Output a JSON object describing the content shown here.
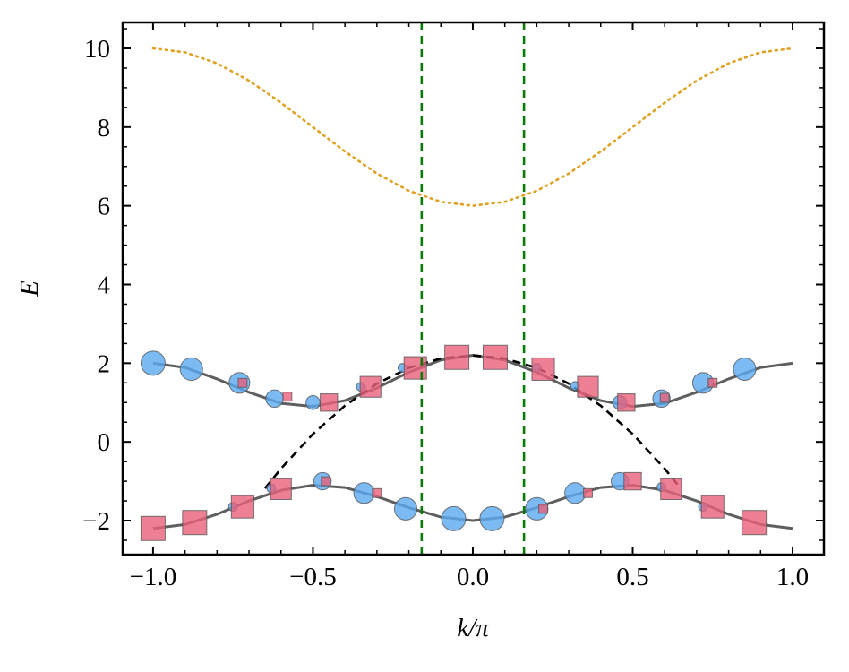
{
  "chart_data": {
    "type": "line",
    "xlabel": "k/π",
    "ylabel": "E",
    "xlim": [
      -1.095,
      1.098
    ],
    "ylim": [
      -2.865,
      10.66
    ],
    "xticks": [
      {
        "value": -1.0,
        "label": "−1.0"
      },
      {
        "value": -0.5,
        "label": "−0.5"
      },
      {
        "value": 0,
        "label": "0.0"
      },
      {
        "value": 0.5,
        "label": "0.5"
      },
      {
        "value": 1.0,
        "label": "1.0"
      }
    ],
    "yticks": [
      {
        "value": -2,
        "label": "−2"
      },
      0,
      2,
      4,
      6,
      8,
      10
    ],
    "xminorticks": [
      -0.9,
      -0.8,
      -0.7,
      -0.6,
      -0.4,
      -0.3,
      -0.2,
      -0.1,
      0.1,
      0.2,
      0.3,
      0.4,
      0.6,
      0.7,
      0.8,
      0.9
    ],
    "yminorticks": [
      -2.5,
      -1.5,
      -1,
      -0.5,
      0.5,
      1,
      1.5,
      2.5,
      3,
      3.5,
      4.5,
      5,
      5.5,
      6.5,
      7,
      7.5,
      8.5,
      9,
      9.5,
      10.5
    ],
    "series": [
      {
        "style": "solid",
        "color": "#555555",
        "x": [
          -1.0,
          -0.9,
          -0.8,
          -0.7,
          -0.6,
          -0.5,
          -0.4,
          -0.3,
          -0.2,
          -0.1,
          0,
          0.1,
          0.2,
          0.3,
          0.4,
          0.5,
          0.6,
          0.7,
          0.8,
          0.9,
          1.0
        ],
        "values": [
          2.0,
          1.89,
          1.6,
          1.26,
          0.98,
          0.9,
          1.05,
          1.37,
          1.77,
          2.08,
          2.2,
          2.08,
          1.77,
          1.37,
          1.05,
          0.9,
          0.98,
          1.26,
          1.6,
          1.89,
          2.0
        ]
      },
      {
        "style": "solid",
        "color": "#555555",
        "x": [
          -1.0,
          -0.9,
          -0.8,
          -0.7,
          -0.6,
          -0.5,
          -0.4,
          -0.3,
          -0.2,
          -0.1,
          0,
          0.1,
          0.2,
          0.3,
          0.4,
          0.5,
          0.6,
          0.7,
          0.8,
          0.9,
          1.0
        ],
        "values": [
          -2.2,
          -2.1,
          -1.84,
          -1.5,
          -1.23,
          -1.1,
          -1.16,
          -1.39,
          -1.67,
          -1.91,
          -2.0,
          -1.91,
          -1.67,
          -1.39,
          -1.16,
          -1.1,
          -1.23,
          -1.5,
          -1.84,
          -2.1,
          -2.2
        ]
      },
      {
        "style": "dotted",
        "color": "#e0a020",
        "x": [
          -1.0,
          -0.9,
          -0.8,
          -0.7,
          -0.6,
          -0.5,
          -0.4,
          -0.3,
          -0.2,
          -0.1,
          0,
          0.1,
          0.2,
          0.3,
          0.4,
          0.5,
          0.6,
          0.7,
          0.8,
          0.9,
          1.0
        ],
        "values": [
          10,
          9.9,
          9.62,
          9.18,
          8.62,
          8,
          7.38,
          6.82,
          6.38,
          6.1,
          6,
          6.1,
          6.38,
          6.82,
          7.38,
          8,
          8.62,
          9.18,
          9.62,
          9.9,
          10
        ]
      },
      {
        "style": "dashed",
        "color": "#000000",
        "x": [
          -0.65,
          -0.6,
          -0.5,
          -0.4,
          -0.3,
          -0.2,
          -0.1,
          0,
          0.1,
          0.2,
          0.3,
          0.4,
          0.5,
          0.6,
          0.65
        ],
        "values": [
          -1.18,
          -0.68,
          0.2,
          0.92,
          1.48,
          1.88,
          2.12,
          2.2,
          2.12,
          1.88,
          1.48,
          0.92,
          0.2,
          -0.68,
          -1.18
        ]
      }
    ],
    "vlines": {
      "color": "#0a7a0a",
      "values": [
        -0.16,
        0.16
      ]
    },
    "scatter_series": [
      {
        "marker": "circle",
        "color": "#5aa9f0",
        "x": [
          -1.0,
          -0.88,
          -0.73,
          -0.62,
          -0.5,
          -0.35,
          -0.22,
          0.2,
          0.32,
          0.46,
          0.59,
          0.72,
          0.85,
          -0.75,
          -0.63,
          -0.47,
          -0.34,
          -0.21,
          -0.06,
          0.06,
          0.2,
          0.32,
          0.46,
          0.59,
          0.72
        ],
        "values": [
          2.0,
          1.85,
          1.5,
          1.1,
          1.0,
          1.4,
          1.88,
          1.88,
          1.42,
          1.0,
          1.1,
          1.5,
          1.85,
          -1.65,
          -1.18,
          -1.0,
          -1.3,
          -1.7,
          -1.95,
          -1.95,
          -1.7,
          -1.3,
          -1.0,
          -1.15,
          -1.65
        ],
        "sizes": [
          10,
          9,
          8,
          6,
          4,
          1,
          1,
          1,
          1,
          4,
          6,
          8,
          9,
          1,
          1,
          6,
          8,
          9,
          10,
          10,
          9,
          8,
          6,
          1,
          1
        ]
      },
      {
        "marker": "square",
        "color": "#e8607a",
        "x": [
          -0.72,
          -0.58,
          -0.45,
          -0.32,
          -0.18,
          -0.05,
          0.07,
          0.22,
          0.36,
          0.48,
          0.6,
          0.75,
          -1.0,
          -0.87,
          -0.72,
          -0.6,
          -0.46,
          -0.3,
          0.22,
          0.36,
          0.5,
          0.62,
          0.75,
          0.88
        ],
        "values": [
          1.5,
          1.15,
          1.0,
          1.4,
          1.88,
          2.15,
          2.15,
          1.85,
          1.4,
          1.0,
          1.12,
          1.5,
          -2.2,
          -2.05,
          -1.65,
          -1.2,
          -1.0,
          -1.3,
          -1.7,
          -1.3,
          -1.0,
          -1.2,
          -1.65,
          -2.05
        ],
        "sizes": [
          1,
          1,
          6,
          8,
          9,
          10,
          10,
          9,
          8,
          6,
          1,
          1,
          10,
          10,
          9,
          8,
          1,
          1,
          1,
          1,
          6,
          8,
          9,
          10
        ]
      }
    ]
  }
}
